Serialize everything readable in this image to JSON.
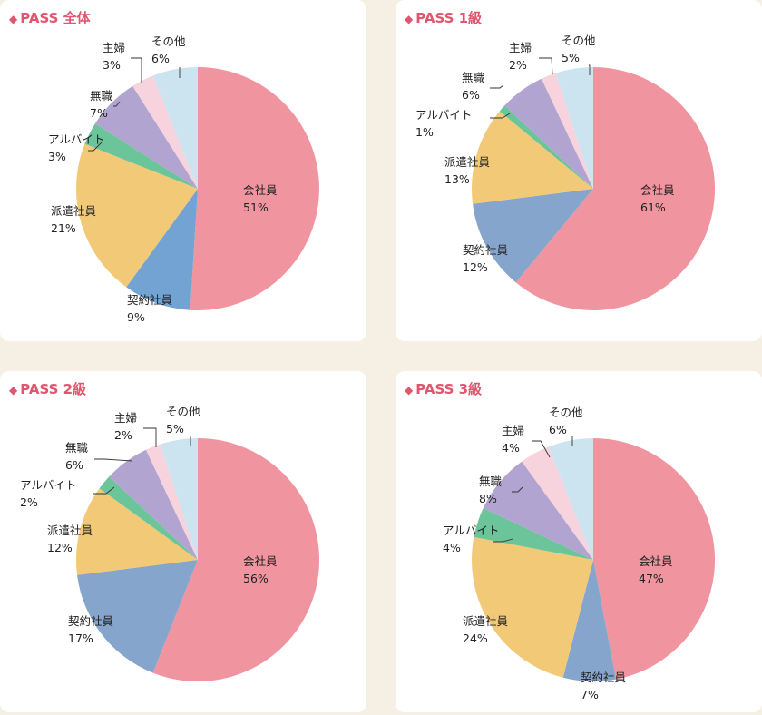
{
  "chart_data": [
    {
      "type": "pie",
      "title": "PASS 全体",
      "slices": [
        {
          "label": "会社員",
          "value": 51,
          "value_label": "51%",
          "color": "#f0949f"
        },
        {
          "label": "契約社員",
          "value": 9,
          "value_label": "9%",
          "color": "#72a3d3"
        },
        {
          "label": "派遣社員",
          "value": 21,
          "value_label": "21%",
          "color": "#f2c977"
        },
        {
          "label": "アルバイト",
          "value": 3,
          "value_label": "3%",
          "color": "#6cc49a"
        },
        {
          "label": "無職",
          "value": 7,
          "value_label": "7%",
          "color": "#b2a4d0"
        },
        {
          "label": "主婦",
          "value": 3,
          "value_label": "3%",
          "color": "#f6d3dd"
        },
        {
          "label": "その他",
          "value": 6,
          "value_label": "6%",
          "color": "#cce4f0"
        }
      ]
    },
    {
      "type": "pie",
      "title": "PASS 1級",
      "slices": [
        {
          "label": "会社員",
          "value": 61,
          "value_label": "61%",
          "color": "#f0949f"
        },
        {
          "label": "契約社員",
          "value": 12,
          "value_label": "12%",
          "color": "#86a5cc"
        },
        {
          "label": "派遣社員",
          "value": 13,
          "value_label": "13%",
          "color": "#f2c977"
        },
        {
          "label": "アルバイト",
          "value": 1,
          "value_label": "1%",
          "color": "#6cc49a"
        },
        {
          "label": "無職",
          "value": 6,
          "value_label": "6%",
          "color": "#b2a4d0"
        },
        {
          "label": "主婦",
          "value": 2,
          "value_label": "2%",
          "color": "#f6d3dd"
        },
        {
          "label": "その他",
          "value": 5,
          "value_label": "5%",
          "color": "#cce4f0"
        }
      ]
    },
    {
      "type": "pie",
      "title": "PASS 2級",
      "slices": [
        {
          "label": "会社員",
          "value": 56,
          "value_label": "56%",
          "color": "#f0949f"
        },
        {
          "label": "契約社員",
          "value": 17,
          "value_label": "17%",
          "color": "#86a5cc"
        },
        {
          "label": "派遣社員",
          "value": 12,
          "value_label": "12%",
          "color": "#f2c977"
        },
        {
          "label": "アルバイト",
          "value": 2,
          "value_label": "2%",
          "color": "#6cc49a"
        },
        {
          "label": "無職",
          "value": 6,
          "value_label": "6%",
          "color": "#b2a4d0"
        },
        {
          "label": "主婦",
          "value": 2,
          "value_label": "2%",
          "color": "#f6d3dd"
        },
        {
          "label": "その他",
          "value": 5,
          "value_label": "5%",
          "color": "#cce4f0"
        }
      ]
    },
    {
      "type": "pie",
      "title": "PASS 3級",
      "slices": [
        {
          "label": "会社員",
          "value": 47,
          "value_label": "47%",
          "color": "#f0949f"
        },
        {
          "label": "契約社員",
          "value": 7,
          "value_label": "7%",
          "color": "#86a5cc"
        },
        {
          "label": "派遣社員",
          "value": 24,
          "value_label": "24%",
          "color": "#f2c977"
        },
        {
          "label": "アルバイト",
          "value": 4,
          "value_label": "4%",
          "color": "#6cc49a"
        },
        {
          "label": "無職",
          "value": 8,
          "value_label": "8%",
          "color": "#b2a4d0"
        },
        {
          "label": "主婦",
          "value": 4,
          "value_label": "4%",
          "color": "#f6d3dd"
        },
        {
          "label": "その他",
          "value": 6,
          "value_label": "6%",
          "color": "#cce4f0"
        }
      ]
    }
  ]
}
